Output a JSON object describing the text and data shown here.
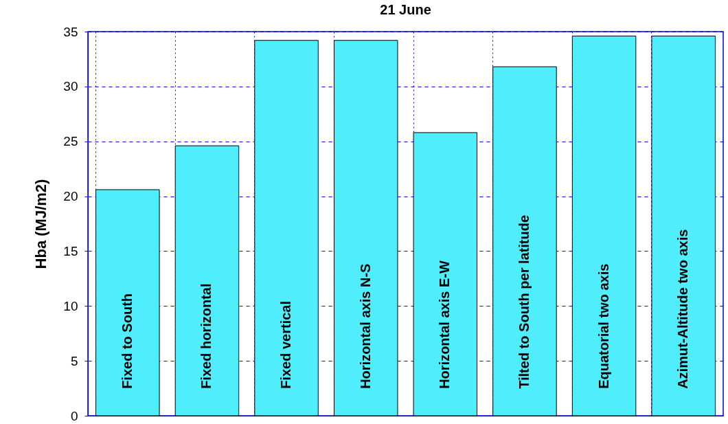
{
  "chart_data": {
    "type": "bar",
    "title": "21 June",
    "ylabel": "Hba (MJ/m2)",
    "categories": [
      "Fixed to South",
      "Fixed horizontal",
      "Fixed vertical",
      "Horizontal axis N-S",
      "Horizontal axis E-W",
      "Tilted to South per latitude",
      "Equatorial two axis",
      "Azimut-Altitude two axis"
    ],
    "values": [
      20.6,
      24.6,
      34.2,
      34.2,
      25.8,
      31.8,
      34.6,
      34.6
    ],
    "color": "#50eefc",
    "ylim": [
      0,
      35
    ],
    "yticks": [
      0,
      5,
      10,
      15,
      20,
      25,
      30,
      35
    ],
    "grid": true
  }
}
